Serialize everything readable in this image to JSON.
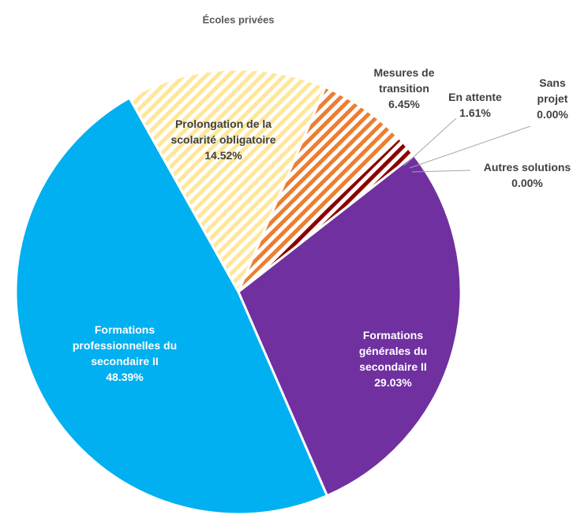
{
  "chart_data": {
    "type": "pie",
    "title": "Écoles privées",
    "categories": [
      "Formations générales du secondaire II",
      "Formations professionnelles du secondaire II",
      "Prolongation de la scolarité obligatoire",
      "Mesures de transition",
      "En attente",
      "Sans projet",
      "Autres solutions"
    ],
    "values": [
      29.03,
      48.39,
      14.52,
      6.45,
      1.61,
      0,
      0
    ],
    "value_labels": [
      "29.03%",
      "48.39%",
      "14.52%",
      "6.45%",
      "1.61%",
      "0.00%",
      "0.00%"
    ],
    "colors": [
      "#7030a0",
      "#00b0f0",
      "#ffe699",
      "#ed7d31",
      "#8b0000",
      "#a5a5a5",
      "#5b9bd5"
    ],
    "hatched": [
      false,
      false,
      true,
      true,
      true,
      false,
      false
    ]
  }
}
